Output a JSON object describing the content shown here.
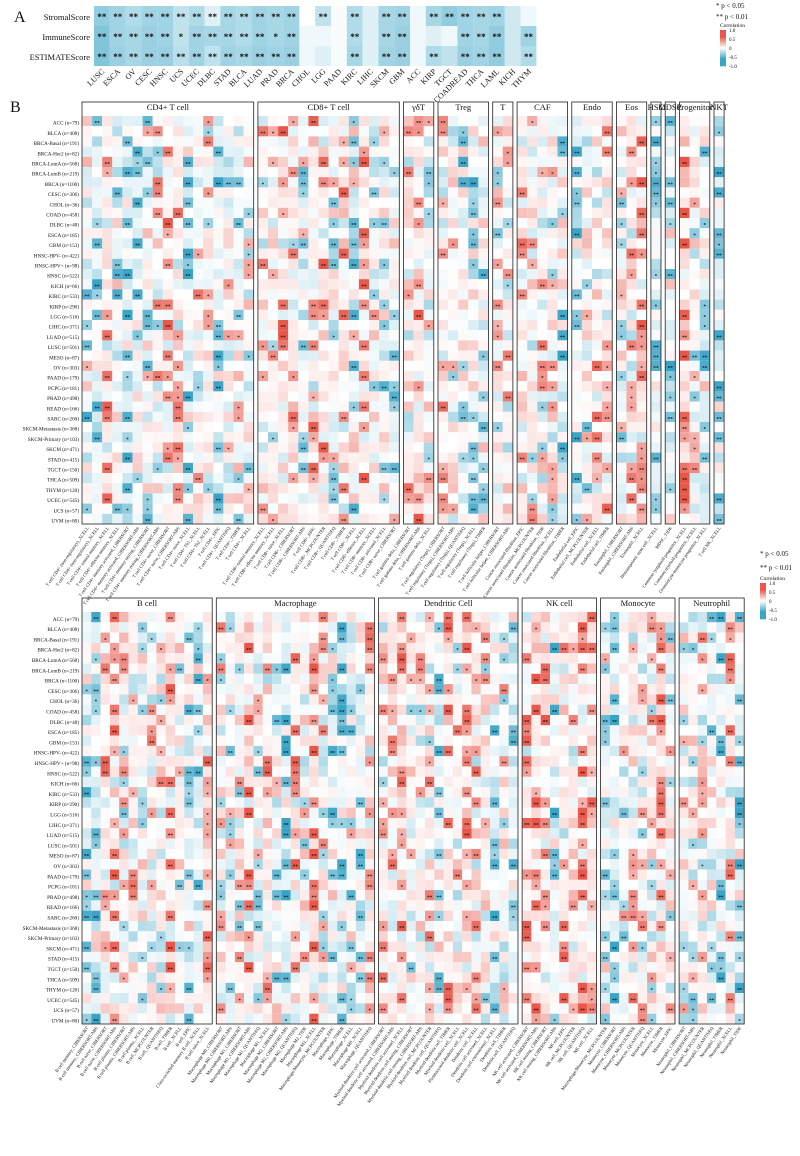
{
  "panel_labels": [
    "A",
    "B"
  ],
  "legend": {
    "sig1": "* p < 0.05",
    "sig2": "** p < 0.01",
    "title": "Correlation",
    "ticks": [
      "1.0",
      "0.5",
      "0",
      "-0.5",
      "-1.0"
    ]
  },
  "colors": {
    "positive": "#e8574a",
    "negative": "#3aa4c6",
    "neutral": "#ffffff"
  },
  "chart_data": [
    {
      "type": "heatmap",
      "id": "panel-A",
      "rows": [
        "StromalScore",
        "ImmuneScore",
        "ESTIMATEScore"
      ],
      "columns": [
        "LUSC",
        "ESCA",
        "OV",
        "CESC",
        "HNSC",
        "UCS",
        "UCEC",
        "DLBC",
        "STAD",
        "BLCA",
        "LUAD",
        "PRAD",
        "BRCA",
        "CHOL",
        "LGG",
        "PAAD",
        "KIRC",
        "LIHC",
        "SKCM",
        "GBM",
        "ACC",
        "KIRP",
        "TGCT",
        "COADREAD",
        "THCA",
        "LAML",
        "KICH",
        "THYM"
      ],
      "values": [
        [
          -0.35,
          -0.3,
          -0.25,
          -0.3,
          -0.3,
          -0.2,
          -0.25,
          -0.1,
          -0.28,
          -0.25,
          -0.3,
          -0.28,
          -0.3,
          0.0,
          -0.2,
          -0.02,
          -0.25,
          -0.1,
          -0.28,
          -0.3,
          -0.05,
          -0.28,
          -0.35,
          -0.3,
          -0.28,
          -0.3,
          -0.15,
          -0.05
        ],
        [
          -0.4,
          -0.3,
          -0.28,
          -0.32,
          -0.3,
          -0.2,
          -0.3,
          -0.28,
          -0.28,
          -0.25,
          -0.3,
          -0.28,
          -0.3,
          -0.05,
          -0.05,
          -0.02,
          -0.25,
          -0.1,
          -0.28,
          -0.32,
          -0.05,
          -0.1,
          -0.05,
          -0.3,
          -0.28,
          -0.35,
          -0.15,
          -0.3
        ],
        [
          -0.4,
          -0.32,
          -0.28,
          -0.32,
          -0.32,
          -0.22,
          -0.3,
          -0.2,
          -0.3,
          -0.28,
          -0.32,
          -0.3,
          -0.32,
          -0.05,
          -0.1,
          -0.03,
          -0.28,
          -0.1,
          -0.3,
          -0.32,
          -0.05,
          -0.25,
          -0.2,
          -0.32,
          -0.3,
          -0.35,
          -0.15,
          -0.25
        ]
      ],
      "significance": [
        [
          "**",
          "**",
          "**",
          "**",
          "**",
          "**",
          "**",
          "**",
          "**",
          "**",
          "**",
          "**",
          "**",
          "",
          "**",
          "",
          "**",
          "",
          "**",
          "**",
          "",
          "**",
          "**",
          "**",
          "**",
          "**",
          "",
          ""
        ],
        [
          "**",
          "**",
          "**",
          "**",
          "**",
          "*",
          "**",
          "**",
          "**",
          "**",
          "**",
          "*",
          "**",
          "",
          "",
          "",
          "**",
          "",
          "**",
          "**",
          "",
          "",
          "",
          "**",
          "**",
          "**",
          "",
          "**"
        ],
        [
          "**",
          "**",
          "**",
          "**",
          "**",
          "**",
          "**",
          "**",
          "**",
          "**",
          "**",
          "**",
          "**",
          "",
          "",
          "",
          "**",
          "",
          "**",
          "**",
          "",
          "**",
          "",
          "**",
          "**",
          "**",
          "",
          "**"
        ]
      ],
      "colorbar": {
        "title": "Correlation",
        "ticks": [
          "1.0",
          "0.5",
          "0",
          "-0.5",
          "-1.0"
        ]
      }
    },
    {
      "type": "heatmap",
      "id": "panel-B-top",
      "rows": [
        "ACC (n=79)",
        "BLCA (n=408)",
        "BRCA-Basal (n=191)",
        "BRCA-Her2 (n=82)",
        "BRCA-LumA (n=568)",
        "BRCA-LumB (n=219)",
        "BRCA (n=1100)",
        "CESC (n=306)",
        "CHOL (n=36)",
        "COAD (n=458)",
        "DLBC (n=48)",
        "ESCA (n=185)",
        "GBM (n=153)",
        "HNSC-HPV- (n=422)",
        "HNSC-HPV+ (n=98)",
        "HNSC (n=522)",
        "KICH (n=66)",
        "KIRC (n=533)",
        "KIRP (n=290)",
        "LGG (n=516)",
        "LIHC (n=371)",
        "LUAD (n=515)",
        "LUSC (n=501)",
        "MESO (n=87)",
        "OV (n=303)",
        "PAAD (n=179)",
        "PCPG (n=181)",
        "PRAD (n=498)",
        "READ (n=166)",
        "SARC (n=260)",
        "SKCM-Metastasis (n=368)",
        "SKCM-Primary (n=103)",
        "SKCM (n=471)",
        "STAD (n=415)",
        "TGCT (n=150)",
        "THCA (n=509)",
        "THYM (n=120)",
        "UCEC (n=545)",
        "UCS (n=57)",
        "UVM (n=80)"
      ],
      "groups": [
        {
          "name": "CD4+ T cell",
          "ncols": 17,
          "labels": [
            "T cell CD4+ (non-regulatory)_XCELL",
            "T cell CD4+ (non-regulatory)_XCELL",
            "T cell CD4+ central memory_XCELL",
            "T cell CD4+ effector memory_XCELL",
            "T cell CD4+ memory activated_CIBERSORT",
            "T cell CD4+ memory activated_CIBERSORT-ABS",
            "T cell CD4+ memory resting_CIBERSORT",
            "T cell CD4+ memory resting_CIBERSORT-ABS",
            "T cell CD4+ naive_CIBERSORT",
            "T cell CD4+ naive_CIBERSORT-ABS",
            "T cell CD4+ naive_XCELL",
            "T cell CD4+ Th1_XCELL",
            "T cell CD4+ Th2_XCELL",
            "T cell CD4+_EPIC",
            "T cell CD4+_QUANTISEQ",
            "T cell CD4+_TIMER",
            "T cell CD4+_XCELL"
          ]
        },
        {
          "name": "CD8+ T cell",
          "ncols": 14,
          "labels": [
            "T cell CD8+ central memory_XCELL",
            "T cell CD8+ effector memory_XCELL",
            "T cell CD8+ naive_XCELL",
            "T cell CD8+_CIBERSORT",
            "T cell CD8+_CIBERSORT-ABS",
            "T cell CD8+_EPIC",
            "T cell CD8+_MCPCOUNTER",
            "T cell CD8+_QUANTISEQ",
            "T cell CD8+_TIMER",
            "T cell CD8+_XCELL",
            "T cell CD8+ effector_XCELL",
            "T cell CD8+ memory_XCELL",
            "T cell CD8+ activated_XCELL",
            "T cell CD8+ naive_CIBERSORT"
          ]
        },
        {
          "name": "γδT",
          "ncols": 3,
          "labels": [
            "T cell gamma delta_CIBERSORT",
            "T cell gamma delta_CIBERSORT-ABS",
            "T cell gamma delta_XCELL"
          ]
        },
        {
          "name": "Treg",
          "ncols": 5,
          "labels": [
            "T cell regulatory (Tregs)_CIBERSORT",
            "T cell regulatory (Tregs)_CIBERSORT-ABS",
            "T cell regulatory (Tregs)_QUANTISEQ",
            "T cell regulatory (Tregs)_XCELL",
            "T cell regulatory (Tregs)_TIMER"
          ]
        },
        {
          "name": "T",
          "ncols": 2,
          "labels": [
            "T cell follicular helper_CIBERSORT",
            "T cell follicular helper_CIBERSORT-ABS"
          ]
        },
        {
          "name": "CAF",
          "ncols": 5,
          "labels": [
            "Cancer associated fibroblast_EPIC",
            "Cancer associated fibroblast_MCPCOUNTER",
            "Cancer associated fibroblast_TIDE",
            "Cancer associated fibroblast_XCELL",
            "Cancer associated fibroblast_TIMER"
          ]
        },
        {
          "name": "Endo",
          "ncols": 4,
          "labels": [
            "Endothelial cell_EPIC",
            "Endothelial cell_MCPCOUNTER",
            "Endothelial cell_XCELL",
            "Endothelial cell_TIMER"
          ]
        },
        {
          "name": "Eos",
          "ncols": 3,
          "labels": [
            "Eosinophil_CIBERSORT",
            "Eosinophil_CIBERSORT-ABS",
            "Eosinophil_XCELL"
          ]
        },
        {
          "name": "HSC",
          "ncols": 1,
          "labels": [
            "Hematopoietic stem cell_XCELL"
          ]
        },
        {
          "name": "MDSC",
          "ncols": 1,
          "labels": [
            "MDSC_TIDE"
          ]
        },
        {
          "name": "Progenitor",
          "ncols": 3,
          "labels": [
            "Common lymphoid progenitor_XCELL",
            "Common myeloid progenitor_XCELL",
            "Granulocyte-monocyte progenitor_XCELL"
          ]
        },
        {
          "name": "NKT",
          "ncols": 1,
          "labels": [
            "T cell NK_XCELL"
          ]
        }
      ]
    },
    {
      "type": "heatmap",
      "id": "panel-B-bottom",
      "rows": [
        "ACC (n=79)",
        "BLCA (n=408)",
        "BRCA-Basal (n=191)",
        "BRCA-Her2 (n=82)",
        "BRCA-LumA (n=568)",
        "BRCA-LumB (n=219)",
        "BRCA (n=1100)",
        "CESC (n=306)",
        "CHOL (n=36)",
        "COAD (n=458)",
        "DLBC (n=48)",
        "ESCA (n=185)",
        "GBM (n=153)",
        "HNSC-HPV- (n=422)",
        "HNSC-HPV+ (n=98)",
        "HNSC (n=522)",
        "KICH (n=66)",
        "KIRC (n=533)",
        "KIRP (n=290)",
        "LGG (n=516)",
        "LIHC (n=371)",
        "LUAD (n=515)",
        "LUSC (n=501)",
        "MESO (n=87)",
        "OV (n=303)",
        "PAAD (n=179)",
        "PCPG (n=181)",
        "PRAD (n=498)",
        "READ (n=166)",
        "SARC (n=260)",
        "SKCM-Metastasis (n=368)",
        "SKCM-Primary (n=103)",
        "SKCM (n=471)",
        "STAD (n=415)",
        "TGCT (n=150)",
        "THCA (n=509)",
        "THYM (n=120)",
        "UCEC (n=545)",
        "UCS (n=57)",
        "UVM (n=80)"
      ],
      "groups": [
        {
          "name": "B cell",
          "ncols": 14,
          "labels": [
            "B cell memory_CIBERSORT",
            "B cell memory_CIBERSORT-ABS",
            "B cell naive_CIBERSORT",
            "B cell naive_CIBERSORT-ABS",
            "B cell plasma_CIBERSORT",
            "B cell plasma_CIBERSORT-ABS",
            "B cell plasma_XCELL",
            "B cell_MCPCOUNTER",
            "B cell_QUANTISEQ",
            "B cell_TIMER",
            "B cell_XCELL",
            "B cell_EPIC",
            "Class-switched memory B cell_XCELL",
            "B cell naive_XCELL"
          ]
        },
        {
          "name": "Macrophage",
          "ncols": 17,
          "labels": [
            "Macrophage M0_CIBERSORT",
            "Macrophage M0_CIBERSORT-ABS",
            "Macrophage M1_CIBERSORT",
            "Macrophage M1_CIBERSORT-ABS",
            "Macrophage M1_QUANTISEQ",
            "Macrophage M1_XCELL",
            "Macrophage M2_CIBERSORT",
            "Macrophage M2_CIBERSORT-ABS",
            "Macrophage M2_QUANTISEQ",
            "Macrophage M2_TIDE",
            "Macrophage M2_XCELL",
            "Macrophage/Monocyte_MCPCOUNTER",
            "Macrophage_EPIC",
            "Macrophage_TIMER",
            "Macrophage_XCELL",
            "Macrophage M0_XCELL",
            "Macrophage_QUANTISEQ"
          ]
        },
        {
          "name": "Dendritic Cell",
          "ncols": 15,
          "labels": [
            "Myeloid dendritic cell activated_CIBERSORT",
            "Myeloid dendritic cell activated_CIBERSORT-ABS",
            "Myeloid dendritic cell activated_XCELL",
            "Myeloid dendritic cell resting_CIBERSORT",
            "Myeloid dendritic cell resting_CIBERSORT-ABS",
            "Myeloid dendritic cell_MCPCOUNTER",
            "Myeloid dendritic cell_QUANTISEQ",
            "Myeloid dendritic cell_TIMER",
            "Myeloid dendritic cell_XCELL",
            "Plasmacytoid dendritic cell_XCELL",
            "Dendritic cell_XCELL",
            "Dendritic cell activated_XCELL",
            "Dendritic cell conventional_XCELL",
            "Dendritic cell_TIMER",
            "Dendritic cell_QUANTISEQ"
          ]
        },
        {
          "name": "NK cell",
          "ncols": 8,
          "labels": [
            "NK cell activated_CIBERSORT",
            "NK cell activated_CIBERSORT-ABS",
            "NK cell resting_CIBERSORT",
            "NK cell resting_CIBERSORT-ABS",
            "NK cell_EPIC",
            "NK cell_MCPCOUNTER",
            "NK cell_QUANTISEQ",
            "NK cell_XCELL"
          ]
        },
        {
          "name": "Monocyte",
          "ncols": 8,
          "labels": [
            "Macrophage/Monocyte_MCPCOUNTER",
            "Monocyte_CIBERSORT",
            "Monocyte_CIBERSORT-ABS",
            "Monocyte_MCPCOUNTER",
            "Monocyte_QUANTISEQ",
            "Monocyte_XCELL",
            "Monocyte_TIMER",
            "Monocyte_EPIC"
          ]
        },
        {
          "name": "Neutrophil",
          "ncols": 7,
          "labels": [
            "Neutrophil_CIBERSORT",
            "Neutrophil_CIBERSORT-ABS",
            "Neutrophil_MCPCOUNTER",
            "Neutrophil_QUANTISEQ",
            "Neutrophil_TIMER",
            "Neutrophil_XCELL",
            "Neutrophil_TIDE"
          ]
        }
      ]
    }
  ]
}
